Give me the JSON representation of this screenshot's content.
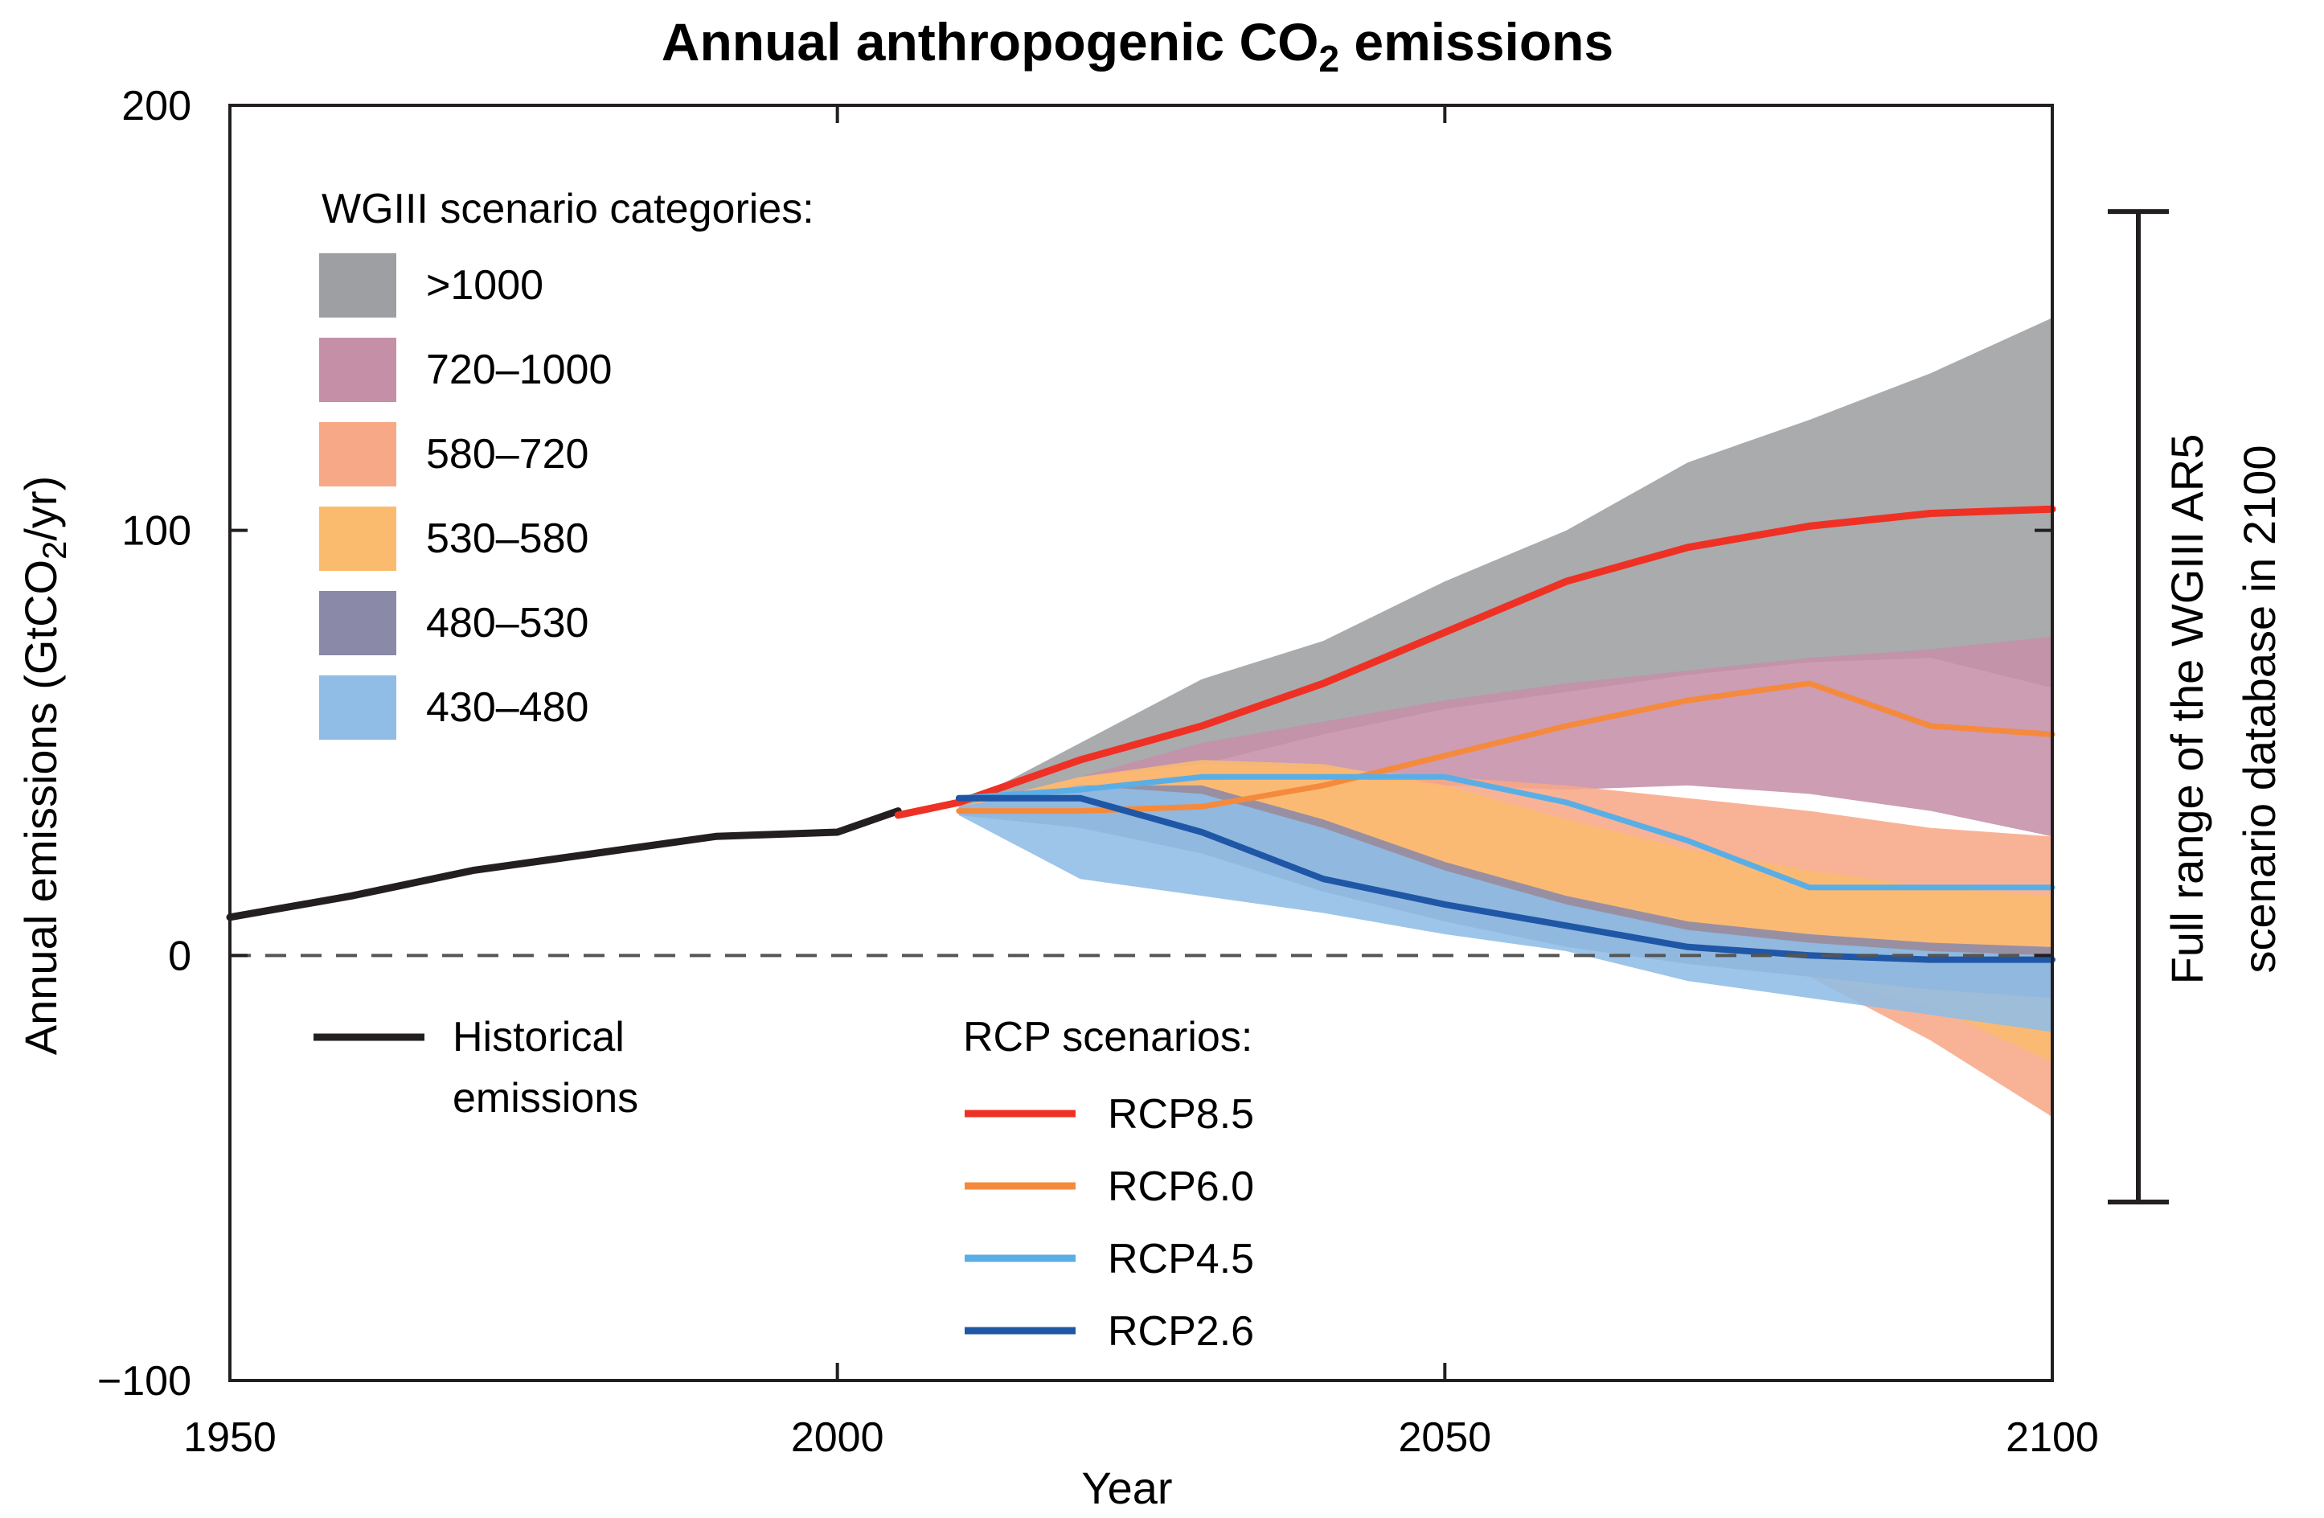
{
  "chart_data": {
    "type": "area",
    "title": {
      "main": "Annual anthropogenic CO",
      "sub": "2",
      "tail": " emissions"
    },
    "xlabel": "Year",
    "ylabel": {
      "main": "Annual emissions (GtCO",
      "sub": "2",
      "tail": "/yr)"
    },
    "xlim": [
      1950,
      2100
    ],
    "ylim": [
      -100,
      200
    ],
    "xticks": [
      1950,
      2000,
      2050,
      2100
    ],
    "yticks": [
      -100,
      0,
      100,
      200
    ],
    "xtick_labels": [
      "1950",
      "2000",
      "2050",
      "2100"
    ],
    "ytick_labels": [
      "−100",
      "0",
      "100",
      "200"
    ],
    "zero_line": "dashed",
    "grid": false,
    "category_legend": {
      "title": "WGIII scenario categories:",
      "entries": [
        {
          "label": ">1000",
          "color": "#9d9fa2"
        },
        {
          "label": "720–1000",
          "color": "#c58fa8"
        },
        {
          "label": "580–720",
          "color": "#f7a887"
        },
        {
          "label": "530–580",
          "color": "#fbbb6f"
        },
        {
          "label": "480–530",
          "color": "#8a8aa8"
        },
        {
          "label": "430–480",
          "color": "#8fbde6"
        }
      ]
    },
    "historical_legend": {
      "label_line1": "Historical",
      "label_line2": "emissions",
      "color": "#231f20"
    },
    "rcp_legend": {
      "title": "RCP scenarios:",
      "entries": [
        {
          "label": "RCP8.5",
          "color": "#ee3124"
        },
        {
          "label": "RCP6.0",
          "color": "#f58a3c"
        },
        {
          "label": "RCP4.5",
          "color": "#5aaee6"
        },
        {
          "label": "RCP2.6",
          "color": "#1f57a6"
        }
      ]
    },
    "range_bar": {
      "label_line1": "Full range of the WGIII AR5",
      "label_line2": "scenario database in 2100",
      "min": -58,
      "max": 175
    },
    "bands": [
      {
        "name": ">1000",
        "color": "#9d9fa2",
        "x": [
          2010,
          2020,
          2030,
          2040,
          2050,
          2060,
          2070,
          2080,
          2090,
          2100
        ],
        "upper": [
          35,
          50,
          65,
          74,
          88,
          100,
          116,
          126,
          137,
          150
        ],
        "lower": [
          35,
          40,
          45,
          52,
          58,
          62,
          66,
          69,
          70,
          63
        ]
      },
      {
        "name": "720–1000",
        "color": "#c58fa8",
        "x": [
          2010,
          2020,
          2030,
          2040,
          2050,
          2060,
          2070,
          2080,
          2090,
          2100
        ],
        "upper": [
          35,
          42,
          50,
          55,
          60,
          64,
          67,
          70,
          72,
          75
        ],
        "lower": [
          35,
          38,
          41,
          42,
          40,
          39,
          40,
          38,
          34,
          28
        ]
      },
      {
        "name": "580–720",
        "color": "#f7a887",
        "x": [
          2010,
          2020,
          2030,
          2040,
          2050,
          2060,
          2070,
          2080,
          2090,
          2100
        ],
        "upper": [
          35,
          42,
          45,
          44,
          42,
          40,
          37,
          34,
          30,
          28
        ],
        "lower": [
          35,
          33,
          28,
          20,
          12,
          5,
          0,
          -5,
          -20,
          -38
        ]
      },
      {
        "name": "530–580",
        "color": "#fbbb6f",
        "x": [
          2010,
          2020,
          2030,
          2040,
          2050,
          2060,
          2070,
          2080,
          2090,
          2100
        ],
        "upper": [
          35,
          42,
          46,
          45,
          40,
          32,
          25,
          20,
          16,
          14
        ],
        "lower": [
          33,
          32,
          28,
          20,
          12,
          5,
          0,
          -5,
          -12,
          -25
        ]
      },
      {
        "name": "480–530",
        "color": "#8a8aa8",
        "x": [
          2010,
          2020,
          2030,
          2040,
          2050,
          2060,
          2070,
          2080,
          2090,
          2100
        ],
        "upper": [
          35,
          40,
          40,
          32,
          22,
          14,
          8,
          5,
          3,
          2
        ],
        "lower": [
          33,
          30,
          24,
          15,
          8,
          2,
          -2,
          -5,
          -8,
          -10
        ]
      },
      {
        "name": "430–480",
        "color": "#8fbde6",
        "x": [
          2010,
          2020,
          2030,
          2040,
          2050,
          2060,
          2070,
          2080,
          2090,
          2100
        ],
        "upper": [
          35,
          40,
          38,
          30,
          20,
          12,
          6,
          3,
          1,
          0
        ],
        "lower": [
          33,
          18,
          14,
          10,
          5,
          1,
          -6,
          -10,
          -14,
          -18
        ]
      }
    ],
    "series": [
      {
        "name": "Historical",
        "color": "#231f20",
        "width": 9,
        "x": [
          1950,
          1960,
          1970,
          1980,
          1990,
          2000,
          2005
        ],
        "y": [
          9,
          14,
          20,
          24,
          28,
          29,
          34
        ]
      },
      {
        "name": "RCP8.5",
        "color": "#ee3124",
        "width": 9,
        "x": [
          2005,
          2010,
          2020,
          2030,
          2040,
          2050,
          2060,
          2070,
          2080,
          2090,
          2100
        ],
        "y": [
          33,
          36,
          46,
          54,
          64,
          76,
          88,
          96,
          101,
          104,
          105
        ]
      },
      {
        "name": "RCP6.0",
        "color": "#f58a3c",
        "width": 7,
        "x": [
          2010,
          2020,
          2030,
          2040,
          2050,
          2060,
          2070,
          2080,
          2090,
          2100
        ],
        "y": [
          34,
          34,
          35,
          40,
          47,
          54,
          60,
          64,
          54,
          52
        ]
      },
      {
        "name": "RCP4.5",
        "color": "#5aaee6",
        "width": 7,
        "x": [
          2010,
          2020,
          2030,
          2040,
          2050,
          2060,
          2070,
          2080,
          2090,
          2100
        ],
        "y": [
          37,
          39,
          42,
          42,
          42,
          36,
          27,
          16,
          16,
          16
        ]
      },
      {
        "name": "RCP2.6",
        "color": "#1f57a6",
        "width": 8,
        "x": [
          2010,
          2020,
          2030,
          2040,
          2050,
          2060,
          2070,
          2080,
          2090,
          2100
        ],
        "y": [
          37,
          37,
          29,
          18,
          12,
          7,
          2,
          0,
          -1,
          -1
        ]
      }
    ]
  }
}
